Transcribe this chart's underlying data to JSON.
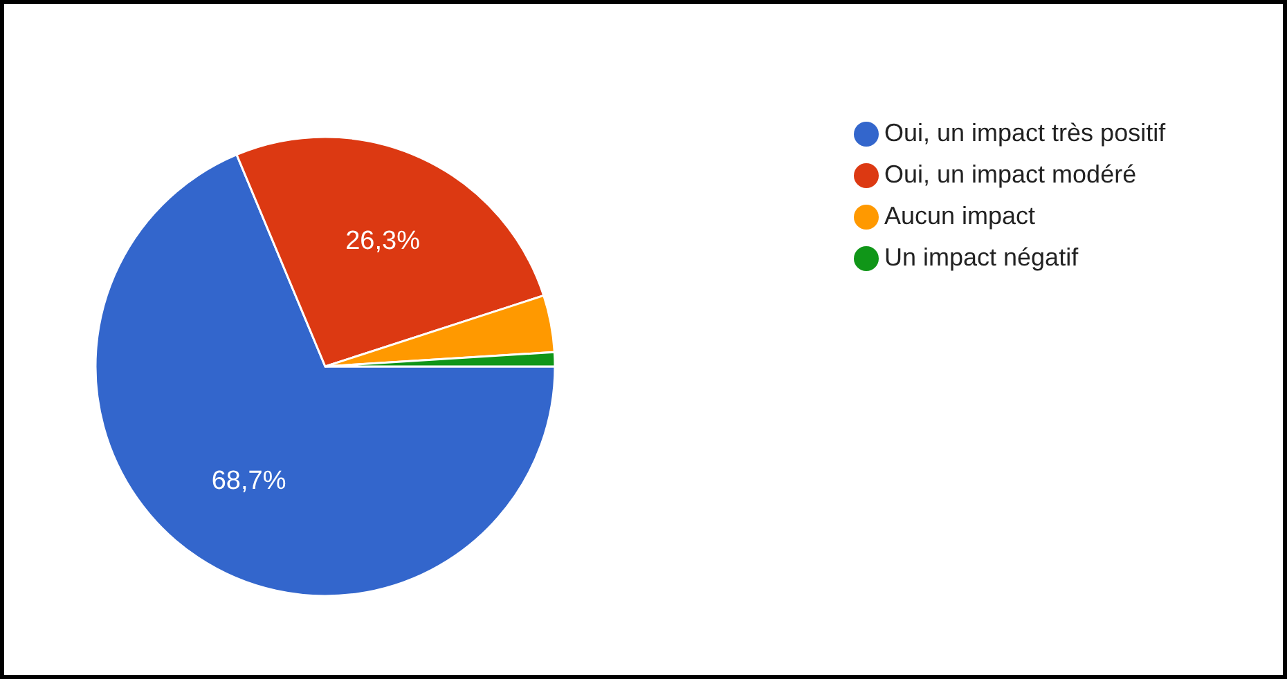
{
  "chart_data": {
    "type": "pie",
    "categories": [
      "Oui, un impact très positif",
      "Oui, un impact modéré",
      "Aucun impact",
      "Un impact négatif"
    ],
    "values": [
      68.7,
      26.3,
      4,
      1
    ],
    "colors": [
      "#3366cc",
      "#dc3912",
      "#ff9900",
      "#109618"
    ],
    "value_labels": [
      "68,7%",
      "26,3%",
      null,
      null
    ],
    "legend": "top right"
  }
}
